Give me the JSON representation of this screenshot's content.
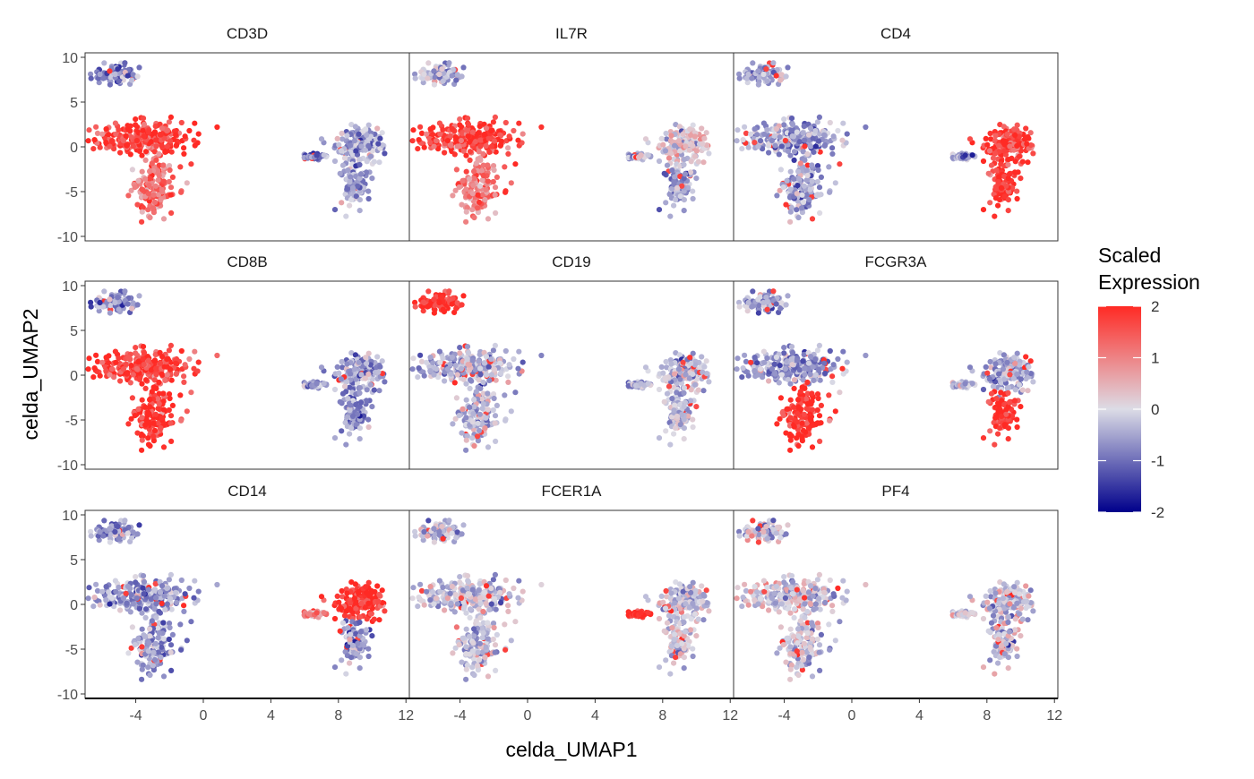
{
  "chart_data": {
    "type": "scatter",
    "facet_layout": {
      "rows": 3,
      "cols": 3
    },
    "xlabel": "celda_UMAP1",
    "ylabel": "celda_UMAP2",
    "xlim": [
      -7,
      12.2
    ],
    "ylim": [
      -10.5,
      10.5
    ],
    "x_ticks": [
      -4,
      0,
      4,
      8,
      12
    ],
    "x_tick_labels": [
      "-4",
      "0",
      "4",
      "8",
      "12"
    ],
    "y_ticks": [
      10,
      5,
      0,
      -5,
      -10
    ],
    "y_tick_labels": [
      "10",
      "5",
      "0",
      "-5",
      "-10"
    ],
    "grid": false,
    "legend": {
      "title_lines": [
        "Scaled",
        "Expression"
      ],
      "placement": "right",
      "range": [
        -2,
        2
      ],
      "ticks": [
        2,
        1,
        0,
        -1,
        -2
      ],
      "tick_labels": [
        "2",
        "1",
        "0",
        "-1",
        "-2"
      ],
      "colors": {
        "low": "#00008B",
        "mid": "#DCDCE6",
        "high": "#FF2A24"
      }
    },
    "panels": [
      {
        "title": "CD3D",
        "levels": [
          -0.9,
          1.8,
          1.2,
          -0.8,
          -0.5,
          -0.6
        ]
      },
      {
        "title": "IL7R",
        "levels": [
          -0.3,
          1.8,
          1.0,
          -0.3,
          0.2,
          -0.6
        ]
      },
      {
        "title": "CD4",
        "levels": [
          -0.5,
          -0.5,
          -0.5,
          -0.5,
          1.8,
          1.8
        ]
      },
      {
        "title": "CD8B",
        "levels": [
          -0.6,
          1.7,
          1.9,
          -0.6,
          -0.6,
          -0.7
        ]
      },
      {
        "title": "CD19",
        "levels": [
          1.9,
          -0.3,
          -0.3,
          -0.3,
          -0.3,
          -0.3
        ]
      },
      {
        "title": "FCGR3A",
        "levels": [
          -0.5,
          -0.6,
          1.9,
          -0.3,
          -0.5,
          1.9
        ]
      },
      {
        "title": "CD14",
        "levels": [
          -0.6,
          -0.6,
          -0.6,
          1.0,
          1.9,
          -0.6
        ]
      },
      {
        "title": "FCER1A",
        "levels": [
          -0.2,
          -0.2,
          -0.2,
          1.9,
          -0.2,
          -0.2
        ]
      },
      {
        "title": "PF4",
        "levels": [
          -0.1,
          -0.1,
          -0.1,
          -0.1,
          -0.1,
          -0.1
        ]
      }
    ]
  }
}
